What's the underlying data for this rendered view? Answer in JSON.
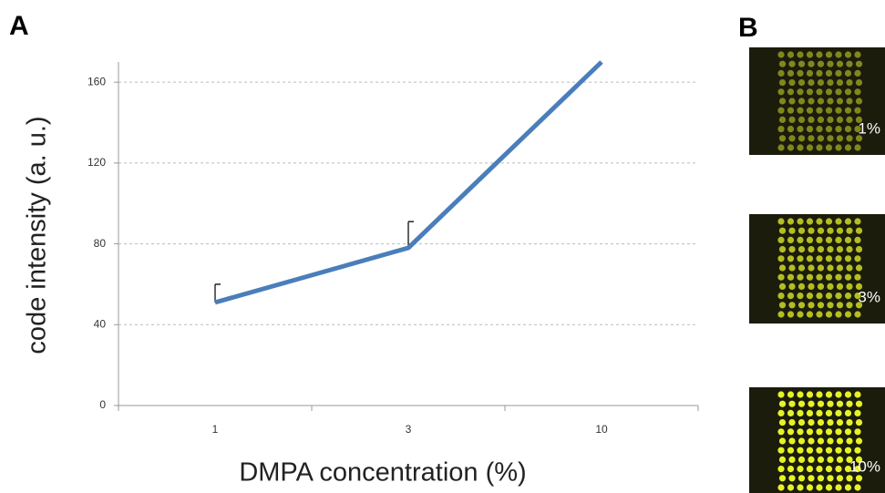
{
  "chart_data": {
    "type": "line",
    "panel_label": "A",
    "x_label": "DMPA concentration (%)",
    "y_label": "code intensity (a. u.)",
    "categories": [
      "1",
      "3",
      "10"
    ],
    "series": [
      {
        "color": "#4a7ebb",
        "values": [
          51,
          78,
          170
        ],
        "errors": [
          9,
          13,
          null
        ]
      }
    ],
    "ylim": [
      0,
      170
    ],
    "yticks": [
      0,
      40,
      80,
      120,
      160
    ],
    "grid": true
  },
  "images": {
    "panel_label": "B",
    "panels": [
      {
        "label": "1%"
      },
      {
        "label": "3%"
      },
      {
        "label": "10%"
      }
    ]
  }
}
